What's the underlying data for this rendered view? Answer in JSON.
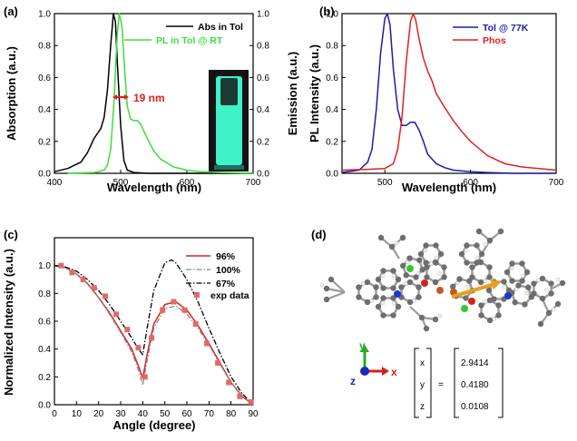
{
  "colors": {
    "black": "#000000",
    "green": "#3ddc3d",
    "blue": "#1a1ab0",
    "red": "#e0201e",
    "gray": "#8a8a8a",
    "cuvette_glow": "#3ff2c8"
  },
  "panels": [
    {
      "label": "(a)"
    },
    {
      "label": "(b)"
    },
    {
      "label": "(c)"
    },
    {
      "label": "(d)"
    }
  ],
  "chart_data": [
    {
      "type": "line",
      "panel": "(a)",
      "xlabel": "Wavelength (nm)",
      "ylabel": "Absorption (a.u.)",
      "y2label": "Emission (a.u.)",
      "xlim": [
        400,
        700
      ],
      "ylim": [
        0,
        1.0
      ],
      "y2lim": [
        0,
        1.0
      ],
      "xticks": [
        "400",
        "500",
        "600",
        "700"
      ],
      "yticks": [
        "0.0",
        "0.2",
        "0.4",
        "0.6",
        "0.8",
        "1.0"
      ],
      "y2ticks": [
        "0.0",
        "0.2",
        "0.4",
        "0.6",
        "0.8",
        "1.0"
      ],
      "legend_position": "top-right",
      "annotation": "19 nm",
      "series": [
        {
          "name": "Abs in Tol",
          "color": "#000000",
          "axis": "left",
          "x": [
            400,
            420,
            440,
            450,
            460,
            465,
            470,
            475,
            480,
            485,
            489,
            492,
            495,
            500,
            505,
            510,
            520,
            540,
            700
          ],
          "y": [
            0.01,
            0.03,
            0.07,
            0.13,
            0.22,
            0.25,
            0.28,
            0.35,
            0.52,
            0.8,
            1.0,
            0.95,
            0.7,
            0.3,
            0.08,
            0.02,
            0.005,
            0.0,
            0.0
          ]
        },
        {
          "name": "PL in Tol @ RT",
          "color": "#3ddc3d",
          "axis": "right",
          "x": [
            420,
            460,
            475,
            480,
            485,
            490,
            495,
            498,
            502,
            506,
            510,
            515,
            520,
            525,
            530,
            540,
            550,
            560,
            580,
            600,
            620,
            650,
            700
          ],
          "y": [
            0.0,
            0.005,
            0.02,
            0.05,
            0.15,
            0.45,
            0.88,
            1.0,
            0.92,
            0.65,
            0.42,
            0.34,
            0.33,
            0.33,
            0.31,
            0.22,
            0.14,
            0.09,
            0.04,
            0.02,
            0.01,
            0.005,
            0.0
          ]
        }
      ]
    },
    {
      "type": "line",
      "panel": "(b)",
      "xlabel": "Wavelength (nm)",
      "ylabel": "PL Intensity (a.u.)",
      "xlim": [
        450,
        700
      ],
      "ylim": [
        0,
        1.0
      ],
      "xticks": [
        "500",
        "600",
        "700"
      ],
      "yticks": [
        "0.0",
        "0.2",
        "0.4",
        "0.6",
        "0.8",
        "1.0"
      ],
      "legend_position": "top-right",
      "series": [
        {
          "name": "Tol @ 77K",
          "color": "#1a1ab0",
          "x": [
            450,
            470,
            480,
            485,
            490,
            495,
            500,
            503,
            506,
            510,
            515,
            520,
            525,
            530,
            535,
            540,
            545,
            550,
            560,
            570,
            580,
            600,
            620,
            650,
            700
          ],
          "y": [
            0.005,
            0.02,
            0.07,
            0.15,
            0.4,
            0.75,
            0.97,
            1.0,
            0.93,
            0.65,
            0.4,
            0.3,
            0.3,
            0.32,
            0.32,
            0.27,
            0.2,
            0.12,
            0.06,
            0.035,
            0.02,
            0.01,
            0.005,
            0.0,
            0.0
          ]
        },
        {
          "name": "Phos",
          "color": "#e0201e",
          "x": [
            450,
            480,
            500,
            510,
            515,
            520,
            525,
            530,
            533,
            536,
            540,
            545,
            550,
            555,
            560,
            570,
            580,
            590,
            600,
            620,
            640,
            660,
            680,
            700
          ],
          "y": [
            0.02,
            0.025,
            0.03,
            0.06,
            0.15,
            0.35,
            0.7,
            0.95,
            1.0,
            0.96,
            0.84,
            0.72,
            0.64,
            0.58,
            0.5,
            0.41,
            0.33,
            0.26,
            0.2,
            0.11,
            0.06,
            0.04,
            0.03,
            0.02
          ]
        }
      ]
    },
    {
      "type": "line",
      "panel": "(c)",
      "xlabel": "Angle (degree)",
      "ylabel": "Normalized Intensity (a.u.)",
      "xlim": [
        0,
        90
      ],
      "ylim": [
        0,
        1.2
      ],
      "xticks": [
        "0",
        "10",
        "20",
        "30",
        "40",
        "50",
        "60",
        "70",
        "80",
        "90"
      ],
      "yticks": [
        "0.0",
        "0.2",
        "0.4",
        "0.6",
        "0.8",
        "1.0"
      ],
      "legend_position": "top-right",
      "series": [
        {
          "name": "96%",
          "color": "#e0201e",
          "style": "solid",
          "x": [
            0,
            5,
            10,
            15,
            20,
            25,
            30,
            35,
            38,
            40,
            42,
            45,
            50,
            55,
            60,
            65,
            70,
            75,
            80,
            85,
            90
          ],
          "y": [
            1.0,
            0.985,
            0.94,
            0.87,
            0.77,
            0.66,
            0.53,
            0.4,
            0.28,
            0.19,
            0.36,
            0.58,
            0.72,
            0.74,
            0.68,
            0.57,
            0.44,
            0.3,
            0.16,
            0.06,
            0.0
          ]
        },
        {
          "name": "100%",
          "color": "#8a8a8a",
          "style": "dash-dot",
          "x": [
            0,
            5,
            10,
            15,
            20,
            25,
            30,
            35,
            38,
            40,
            42,
            45,
            50,
            55,
            60,
            65,
            70,
            75,
            80,
            85,
            90
          ],
          "y": [
            1.0,
            0.985,
            0.94,
            0.87,
            0.77,
            0.65,
            0.52,
            0.38,
            0.25,
            0.14,
            0.32,
            0.55,
            0.69,
            0.71,
            0.65,
            0.55,
            0.43,
            0.29,
            0.16,
            0.06,
            0.0
          ]
        },
        {
          "name": "67%",
          "color": "#000000",
          "style": "dash-dot",
          "x": [
            0,
            5,
            10,
            15,
            20,
            25,
            30,
            35,
            38,
            40,
            42,
            45,
            50,
            53,
            55,
            60,
            65,
            70,
            75,
            80,
            85,
            90
          ],
          "y": [
            1.0,
            0.99,
            0.96,
            0.9,
            0.82,
            0.72,
            0.6,
            0.48,
            0.4,
            0.36,
            0.55,
            0.82,
            1.02,
            1.04,
            1.02,
            0.9,
            0.74,
            0.55,
            0.37,
            0.2,
            0.08,
            0.0
          ]
        },
        {
          "name": "exp data",
          "color": "#e06a6a",
          "style": "markers",
          "x": [
            3,
            8,
            13,
            18,
            23,
            28,
            33,
            38,
            41,
            44,
            49,
            54,
            59,
            64,
            69,
            74,
            79,
            84,
            89
          ],
          "y": [
            1.0,
            0.95,
            0.9,
            0.84,
            0.78,
            0.65,
            0.54,
            0.41,
            0.2,
            0.48,
            0.68,
            0.74,
            0.68,
            0.58,
            0.44,
            0.3,
            0.16,
            0.06,
            0.02
          ]
        }
      ]
    }
  ],
  "panel_d": {
    "axes": {
      "x": "x",
      "y": "y",
      "z": "z"
    },
    "vector_rows": [
      {
        "component": "x",
        "value": "2.9414"
      },
      {
        "component": "y",
        "value": "0.4180"
      },
      {
        "component": "z",
        "value": "0.0108"
      }
    ],
    "equals": "="
  }
}
